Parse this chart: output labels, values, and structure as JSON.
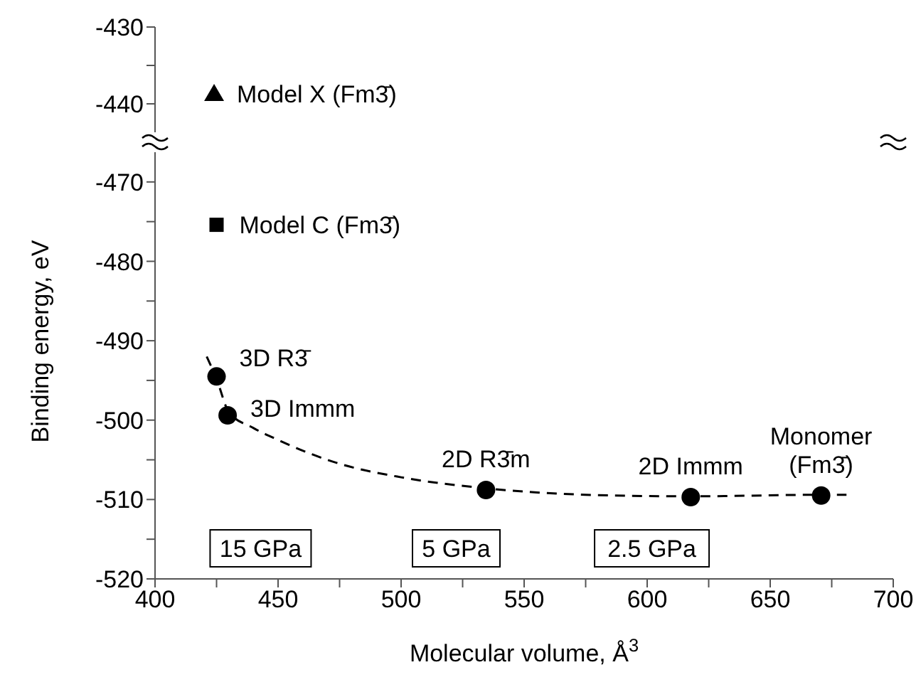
{
  "chart_data": [
    {
      "type": "scatter",
      "xlim": [
        400,
        700
      ],
      "ylim": [
        -445,
        -430
      ],
      "yticks": [
        -430,
        {
          "value": -435,
          "label": null
        },
        -440
      ],
      "tick_labels": "y",
      "series": [
        {
          "name": "Model X (Fm3̄)",
          "marker": "triangle",
          "color": "#000000",
          "x": [
            424
          ],
          "values": [
            -438.7
          ]
        }
      ]
    },
    {
      "type": "scatter",
      "xlim": [
        400,
        700
      ],
      "ylim": [
        -520,
        -465
      ],
      "xticks": [
        400,
        {
          "value": 425,
          "label": null
        },
        450,
        {
          "value": 475,
          "label": null
        },
        500,
        {
          "value": 525,
          "label": null
        },
        550,
        {
          "value": 575,
          "label": null
        },
        600,
        {
          "value": 625,
          "label": null
        },
        650,
        {
          "value": 675,
          "label": null
        },
        700
      ],
      "yticks": [
        -470,
        {
          "value": -475,
          "label": null
        },
        -480,
        {
          "value": -485,
          "label": null
        },
        -490,
        {
          "value": -495,
          "label": null
        },
        -500,
        {
          "value": -505,
          "label": null
        },
        -510,
        {
          "value": -515,
          "label": null
        },
        -520
      ],
      "xlabel": "Molecular volume, Å$^{3}$",
      "ylabel": "Binding energy, eV",
      "series": [
        {
          "name": "Model C (Fm3̄)",
          "marker": "square",
          "color": "#000000",
          "x": [
            425
          ],
          "values": [
            -475.4
          ]
        },
        {
          "name": "3D R3̄",
          "marker": "circle",
          "color": "#000000",
          "x": [
            425
          ],
          "values": [
            -494.5
          ]
        },
        {
          "name": "3D Immm",
          "marker": "circle",
          "color": "#000000",
          "x": [
            429.5
          ],
          "values": [
            -499.4
          ]
        },
        {
          "name": "2D R3̄m",
          "marker": "circle",
          "color": "#000000",
          "x": [
            534.5
          ],
          "values": [
            -508.8
          ]
        },
        {
          "name": "2D Immm",
          "marker": "circle",
          "color": "#000000",
          "x": [
            617.7
          ],
          "values": [
            -509.7
          ]
        },
        {
          "name": "Monomer\n(Fm3̄)",
          "marker": "circle",
          "color": "#000000",
          "x": [
            670.7
          ],
          "values": [
            -509.5
          ]
        },
        {
          "type": "line",
          "marker": "none",
          "line_style": "dashed",
          "color": "#000000",
          "x": [
            421,
            425,
            430,
            440,
            450,
            475,
            500,
            535,
            575,
            618,
            671,
            681
          ],
          "values": [
            -492,
            -494.8,
            -499,
            -501,
            -502.5,
            -505.5,
            -507.2,
            -508.6,
            -509.4,
            -509.6,
            -509.4,
            -509.4
          ]
        }
      ],
      "annotations": [
        "15 GPa",
        "5 GPa",
        "2.5 GPa"
      ]
    }
  ]
}
